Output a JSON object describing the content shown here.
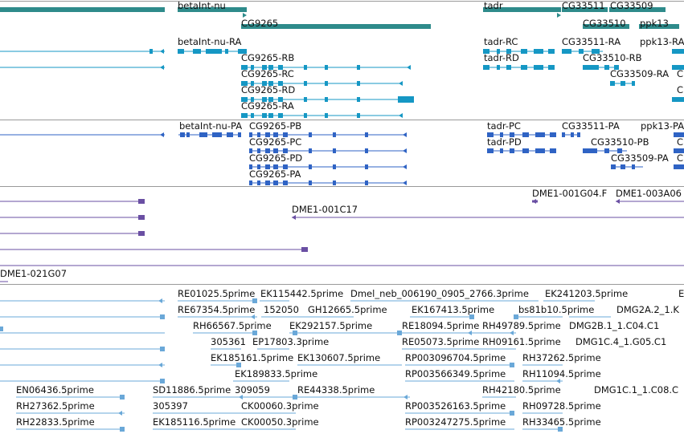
{
  "colors": {
    "gene": "#2e8b8b",
    "transcript_ra": "#1597c4",
    "transcript_pa": "#2f63c4",
    "clone": "#6a4fa3",
    "est": "#6aa8d8",
    "divider": "#9a9a9a",
    "label": "#111111"
  },
  "tracks": {
    "genes": [
      {
        "label": "betaInt-nu",
        "strand": "plus"
      },
      {
        "label": "CG9265",
        "strand": "plus"
      },
      {
        "label": "tadr",
        "strand": "plus"
      },
      {
        "label": "CG33511",
        "strand": "plus"
      },
      {
        "label": "CG33509",
        "strand": "plus"
      },
      {
        "label": "CG33510",
        "strand": "plus"
      },
      {
        "label": "ppk13",
        "strand": "plus"
      }
    ],
    "transcripts_ra": [
      {
        "label": "betaInt-nu-RA"
      },
      {
        "label": "CG9265-RB"
      },
      {
        "label": "CG9265-RC"
      },
      {
        "label": "CG9265-RD"
      },
      {
        "label": "CG9265-RA"
      },
      {
        "label": "tadr-RC"
      },
      {
        "label": "tadr-RD"
      },
      {
        "label": "CG33511-RA"
      },
      {
        "label": "CG33510-RB"
      },
      {
        "label": "CG33509-RA"
      },
      {
        "label": "ppk13-RA"
      },
      {
        "label": "C"
      },
      {
        "label": "C"
      }
    ],
    "transcripts_pa": [
      {
        "label": "betaInt-nu-PA"
      },
      {
        "label": "CG9265-PB"
      },
      {
        "label": "CG9265-PC"
      },
      {
        "label": "CG9265-PD"
      },
      {
        "label": "CG9265-PA"
      },
      {
        "label": "tadr-PC"
      },
      {
        "label": "tadr-PD"
      },
      {
        "label": "CG33511-PA"
      },
      {
        "label": "CG33510-PB"
      },
      {
        "label": "CG33509-PA"
      },
      {
        "label": "ppk13-PA"
      },
      {
        "label": "C"
      },
      {
        "label": "C"
      }
    ],
    "clones": [
      {
        "label": "DME1-001G04.F"
      },
      {
        "label": "DME1-003A06"
      },
      {
        "label": "DME1-001C17"
      },
      {
        "label": "DME1-021G07"
      }
    ],
    "ests": [
      {
        "label": "RE01025.5prime"
      },
      {
        "label": "EK115442.5prime"
      },
      {
        "label": "Dmel_neb_006190_0905_2766.3prime"
      },
      {
        "label": "EK241203.5prime"
      },
      {
        "label": "E"
      },
      {
        "label": "RE67354.5prime"
      },
      {
        "label": "152050"
      },
      {
        "label": "GH12665.5prime"
      },
      {
        "label": "EK167413.5prime"
      },
      {
        "label": "bs81b10.5prime"
      },
      {
        "label": "DMG2A.2_1.K"
      },
      {
        "label": "RH66567.5prime"
      },
      {
        "label": "EK292157.5prime"
      },
      {
        "label": "RE18094.5prime"
      },
      {
        "label": "RH49789.5prime"
      },
      {
        "label": "DMG2B.1_1.C04.C1"
      },
      {
        "label": "305361"
      },
      {
        "label": "EP17803.3prime"
      },
      {
        "label": "RE05073.5prime"
      },
      {
        "label": "RH09161.5prime"
      },
      {
        "label": "DMG1C.4_1.G05.C1"
      },
      {
        "label": "EK185161.5prime"
      },
      {
        "label": "EK130607.5prime"
      },
      {
        "label": "RP003096704.5prime"
      },
      {
        "label": "RH37262.5prime"
      },
      {
        "label": "EK189833.5prime"
      },
      {
        "label": "RP003566349.5prime"
      },
      {
        "label": "RH11094.5prime"
      },
      {
        "label": "EN06436.5prime"
      },
      {
        "label": "SD11886.5prime"
      },
      {
        "label": "309059"
      },
      {
        "label": "RE44338.5prime"
      },
      {
        "label": "RH42180.5prime"
      },
      {
        "label": "DMG1C.1_1.C08.C"
      },
      {
        "label": "RH27362.5prime"
      },
      {
        "label": "305397"
      },
      {
        "label": "CK00060.3prime"
      },
      {
        "label": "RP003526163.5prime"
      },
      {
        "label": "RH09728.5prime"
      },
      {
        "label": "RH22833.5prime"
      },
      {
        "label": "EK185116.5prime"
      },
      {
        "label": "CK00050.3prime"
      },
      {
        "label": "RP003247275.5prime"
      },
      {
        "label": "RH33465.5prime"
      }
    ]
  }
}
